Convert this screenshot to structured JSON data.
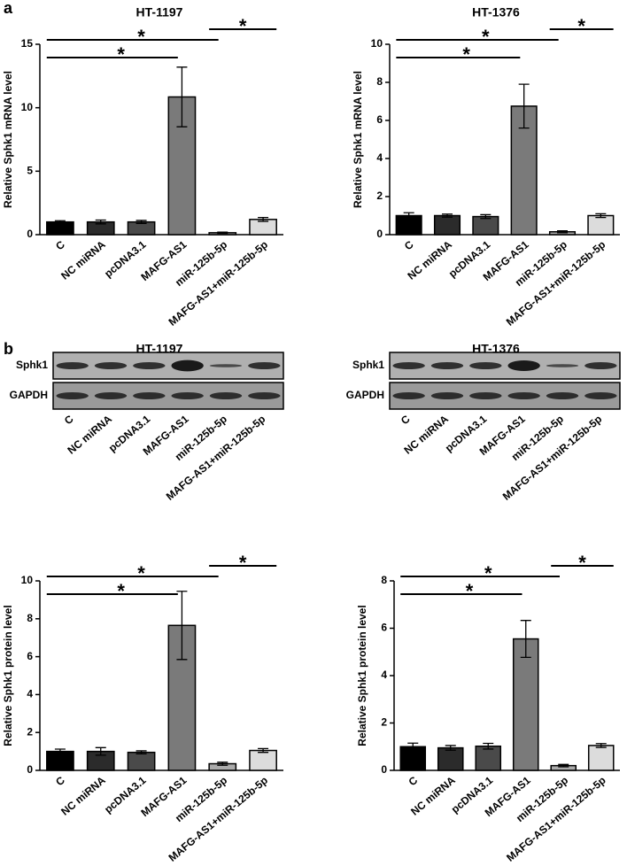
{
  "panel_labels": [
    "a",
    "b"
  ],
  "blots": [
    {
      "title": "HT-1197",
      "rows": [
        "Sphk1",
        "GAPDH"
      ],
      "lanes": [
        "C",
        "NC miRNA",
        "pcDNA3.1",
        "MAFG-AS1",
        "miR-125b-5p",
        "MAFG-AS1+miR-125b-5p"
      ]
    },
    {
      "title": "HT-1376",
      "rows": [
        "Sphk1",
        "GAPDH"
      ],
      "lanes": [
        "C",
        "NC miRNA",
        "pcDNA3.1",
        "MAFG-AS1",
        "miR-125b-5p",
        "MAFG-AS1+miR-125b-5p"
      ]
    }
  ],
  "chart_data": [
    {
      "type": "bar",
      "title": "HT-1197",
      "y_label": "Relative Sphk1 mRNA level",
      "categories": [
        "C",
        "NC miRNA",
        "pcDNA3.1",
        "MAFG-AS1",
        "miR-125b-5p",
        "MAFG-AS1+miR-125b-5p"
      ],
      "values": [
        1.0,
        1.0,
        1.0,
        10.85,
        0.15,
        1.2
      ],
      "errors": [
        0.1,
        0.15,
        0.12,
        2.35,
        0.05,
        0.15
      ],
      "colors": [
        "#000000",
        "#2b2b2b",
        "#4a4a4a",
        "#7a7a7a",
        "#ababab",
        "#dcdcdc"
      ],
      "ylim": [
        0,
        15
      ],
      "yticks": [
        0,
        5,
        10,
        15
      ],
      "annotations": [
        "*",
        "*",
        "*"
      ]
    },
    {
      "type": "bar",
      "title": "HT-1376",
      "y_label": "Relative Sphk1 mRNA level",
      "categories": [
        "C",
        "NC miRNA",
        "pcDNA3.1",
        "MAFG-AS1",
        "miR-125b-5p",
        "MAFG-AS1+miR-125b-5p"
      ],
      "values": [
        1.0,
        1.0,
        0.95,
        6.75,
        0.15,
        1.0
      ],
      "errors": [
        0.15,
        0.08,
        0.1,
        1.15,
        0.05,
        0.1
      ],
      "colors": [
        "#000000",
        "#2b2b2b",
        "#4a4a4a",
        "#7a7a7a",
        "#ababab",
        "#dcdcdc"
      ],
      "ylim": [
        0,
        10
      ],
      "yticks": [
        0,
        2,
        4,
        6,
        8,
        10
      ],
      "annotations": [
        "*",
        "*",
        "*"
      ]
    },
    {
      "type": "bar",
      "y_label": "Relative Sphk1 protein level",
      "categories": [
        "C",
        "NC miRNA",
        "pcDNA3.1",
        "MAFG-AS1",
        "miR-125b-5p",
        "MAFG-AS1+miR-125b-5p"
      ],
      "values": [
        1.0,
        1.0,
        0.95,
        7.65,
        0.35,
        1.05
      ],
      "errors": [
        0.12,
        0.2,
        0.08,
        1.8,
        0.08,
        0.1
      ],
      "colors": [
        "#000000",
        "#2b2b2b",
        "#4a4a4a",
        "#7a7a7a",
        "#ababab",
        "#dcdcdc"
      ],
      "ylim": [
        0,
        10
      ],
      "yticks": [
        0,
        2,
        4,
        6,
        8,
        10
      ],
      "annotations": [
        "*",
        "*",
        "*"
      ]
    },
    {
      "type": "bar",
      "y_label": "Relative Sphk1 protein level",
      "categories": [
        "C",
        "NC miRNA",
        "pcDNA3.1",
        "MAFG-AS1",
        "miR-125b-5p",
        "MAFG-AS1+miR-125b-5p"
      ],
      "values": [
        1.0,
        0.95,
        1.02,
        5.55,
        0.2,
        1.05
      ],
      "errors": [
        0.15,
        0.1,
        0.12,
        0.78,
        0.05,
        0.08
      ],
      "colors": [
        "#000000",
        "#2b2b2b",
        "#4a4a4a",
        "#7a7a7a",
        "#ababab",
        "#dcdcdc"
      ],
      "ylim": [
        0,
        8
      ],
      "yticks": [
        0,
        2,
        4,
        6,
        8
      ],
      "annotations": [
        "*",
        "*",
        "*"
      ]
    }
  ]
}
